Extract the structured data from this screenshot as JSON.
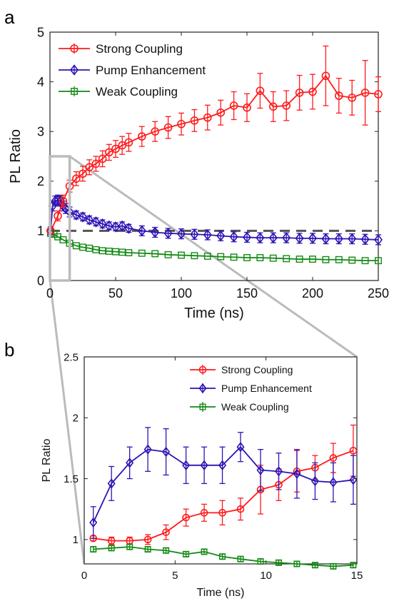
{
  "panels": {
    "a": "a",
    "b": "b"
  },
  "colors": {
    "strong": "#ff1a1a",
    "pump": "#2c14b4",
    "weak": "#138a13",
    "ref_line": "#555555",
    "zoom": "#bbbbbb"
  },
  "chart_data": [
    {
      "type": "line",
      "panel": "a",
      "xlabel": "Time (ns)",
      "ylabel": "PL Ratio",
      "xlim": [
        0,
        250
      ],
      "ylim": [
        0,
        5
      ],
      "xticks": [
        "0",
        "50",
        "100",
        "150",
        "200",
        "250"
      ],
      "yticks": [
        "0",
        "1",
        "2",
        "3",
        "4",
        "5"
      ],
      "legend_position": "top-left",
      "reference_line": 1,
      "zoom_box": {
        "x": [
          0,
          15
        ],
        "y": [
          0,
          2.5
        ]
      },
      "series": [
        {
          "name": "Strong Coupling",
          "marker": "circle",
          "color": "#ff1a1a",
          "x": [
            0.5,
            6,
            10,
            15,
            20,
            25,
            30,
            35,
            40,
            45,
            50,
            55,
            60,
            70,
            80,
            90,
            100,
            110,
            120,
            130,
            140,
            150,
            160,
            170,
            180,
            190,
            200,
            210,
            220,
            230,
            240,
            250
          ],
          "y": [
            1.0,
            1.3,
            1.6,
            1.9,
            2.05,
            2.15,
            2.28,
            2.35,
            2.45,
            2.58,
            2.65,
            2.72,
            2.78,
            2.9,
            3.0,
            3.08,
            3.15,
            3.22,
            3.28,
            3.38,
            3.52,
            3.48,
            3.82,
            3.5,
            3.52,
            3.78,
            3.8,
            4.12,
            3.72,
            3.68,
            3.78,
            3.75
          ],
          "err": [
            0.05,
            0.1,
            0.12,
            0.12,
            0.14,
            0.15,
            0.15,
            0.15,
            0.16,
            0.16,
            0.17,
            0.18,
            0.18,
            0.2,
            0.2,
            0.22,
            0.22,
            0.22,
            0.25,
            0.25,
            0.28,
            0.28,
            0.35,
            0.3,
            0.3,
            0.35,
            0.35,
            0.6,
            0.35,
            0.35,
            0.65,
            0.35
          ]
        },
        {
          "name": "Pump Enhancement",
          "marker": "diamond",
          "color": "#2c14b4",
          "x": [
            0.5,
            2,
            4,
            6,
            8,
            10,
            12,
            15,
            20,
            25,
            30,
            35,
            40,
            45,
            50,
            55,
            60,
            70,
            80,
            90,
            100,
            110,
            120,
            130,
            140,
            150,
            160,
            170,
            180,
            190,
            200,
            210,
            220,
            230,
            240,
            250
          ],
          "y": [
            1.0,
            1.5,
            1.6,
            1.62,
            1.6,
            1.5,
            1.45,
            1.38,
            1.32,
            1.28,
            1.22,
            1.18,
            1.14,
            1.1,
            1.08,
            1.1,
            1.05,
            1.0,
            0.97,
            0.95,
            0.94,
            0.93,
            0.92,
            0.9,
            0.88,
            0.87,
            0.86,
            0.86,
            0.86,
            0.85,
            0.85,
            0.84,
            0.84,
            0.84,
            0.83,
            0.82
          ],
          "err": [
            0.08,
            0.1,
            0.1,
            0.1,
            0.1,
            0.1,
            0.1,
            0.1,
            0.08,
            0.08,
            0.08,
            0.08,
            0.08,
            0.08,
            0.08,
            0.08,
            0.08,
            0.1,
            0.1,
            0.1,
            0.1,
            0.1,
            0.1,
            0.1,
            0.1,
            0.1,
            0.1,
            0.1,
            0.1,
            0.1,
            0.1,
            0.1,
            0.1,
            0.1,
            0.1,
            0.1
          ]
        },
        {
          "name": "Weak Coupling",
          "marker": "square",
          "color": "#138a13",
          "x": [
            0.5,
            3,
            6,
            10,
            15,
            20,
            25,
            30,
            35,
            40,
            45,
            50,
            55,
            60,
            70,
            80,
            90,
            100,
            110,
            120,
            130,
            140,
            150,
            160,
            170,
            180,
            190,
            200,
            210,
            220,
            230,
            240,
            250
          ],
          "y": [
            0.95,
            0.93,
            0.88,
            0.82,
            0.75,
            0.7,
            0.67,
            0.65,
            0.62,
            0.6,
            0.59,
            0.58,
            0.57,
            0.56,
            0.55,
            0.54,
            0.52,
            0.51,
            0.5,
            0.49,
            0.48,
            0.47,
            0.46,
            0.46,
            0.45,
            0.44,
            0.43,
            0.43,
            0.42,
            0.42,
            0.41,
            0.4,
            0.4
          ]
        }
      ]
    },
    {
      "type": "line",
      "panel": "b",
      "xlabel": "Time (ns)",
      "ylabel": "PL Ratio",
      "xlim": [
        0,
        15
      ],
      "ylim": [
        0.8,
        2.5
      ],
      "xticks": [
        "0",
        "5",
        "10",
        "15"
      ],
      "yticks": [
        "1",
        "1.5",
        "2",
        "2.5"
      ],
      "legend_position": "top-right",
      "series": [
        {
          "name": "Strong Coupling",
          "marker": "circle",
          "color": "#ff1a1a",
          "x": [
            0.5,
            1.5,
            2.5,
            3.5,
            4.5,
            5.6,
            6.6,
            7.6,
            8.6,
            9.7,
            10.7,
            11.7,
            12.7,
            13.7,
            14.8
          ],
          "y": [
            1.01,
            0.99,
            0.99,
            1.0,
            1.06,
            1.18,
            1.22,
            1.22,
            1.25,
            1.41,
            1.45,
            1.56,
            1.59,
            1.67,
            1.73
          ],
          "err": [
            0.02,
            0.03,
            0.03,
            0.04,
            0.06,
            0.07,
            0.07,
            0.1,
            0.09,
            0.2,
            0.13,
            0.17,
            0.1,
            0.12,
            0.21
          ]
        },
        {
          "name": "Pump Enhancement",
          "marker": "diamond",
          "color": "#2c14b4",
          "x": [
            0.5,
            1.5,
            2.5,
            3.5,
            4.5,
            5.6,
            6.6,
            7.6,
            8.6,
            9.7,
            10.7,
            11.7,
            12.7,
            13.7,
            14.8
          ],
          "y": [
            1.14,
            1.46,
            1.63,
            1.74,
            1.72,
            1.61,
            1.61,
            1.61,
            1.76,
            1.57,
            1.56,
            1.54,
            1.48,
            1.47,
            1.49
          ],
          "err": [
            0.13,
            0.14,
            0.13,
            0.18,
            0.19,
            0.15,
            0.15,
            0.15,
            0.12,
            0.17,
            0.15,
            0.2,
            0.15,
            0.16,
            0.2
          ]
        },
        {
          "name": "Weak Coupling",
          "marker": "square",
          "color": "#138a13",
          "x": [
            0.5,
            1.5,
            2.5,
            3.5,
            4.5,
            5.6,
            6.6,
            7.6,
            8.6,
            9.7,
            10.7,
            11.7,
            12.7,
            13.7,
            14.8
          ],
          "y": [
            0.92,
            0.93,
            0.94,
            0.92,
            0.91,
            0.88,
            0.9,
            0.86,
            0.84,
            0.82,
            0.81,
            0.8,
            0.79,
            0.78,
            0.79
          ],
          "err": [
            0.02,
            0.02,
            0.02,
            0.02,
            0.02,
            0.02,
            0.02,
            0.02,
            0.02,
            0.02,
            0.02,
            0.02,
            0.02,
            0.02,
            0.02
          ]
        }
      ]
    }
  ]
}
